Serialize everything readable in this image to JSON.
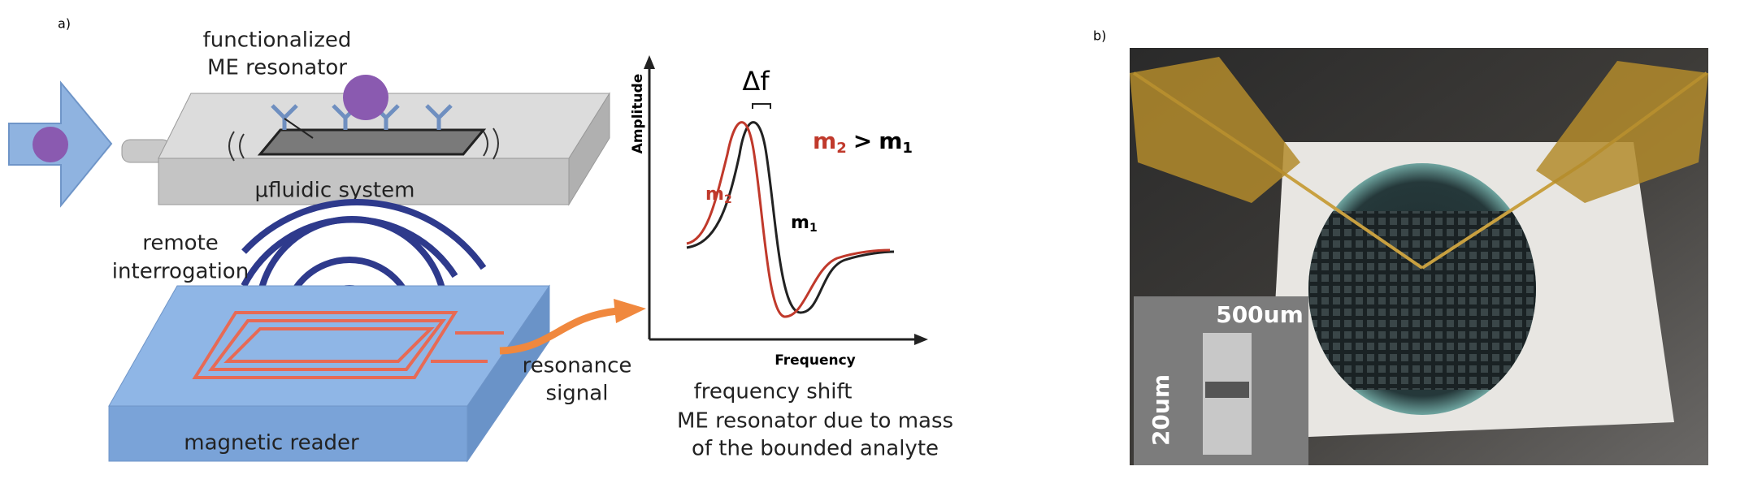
{
  "panel_a": {
    "label": "a)",
    "resonator_label": [
      "functionalized",
      "ME resonator"
    ],
    "fluidic_label": "µfluidic system",
    "interrogation_label": [
      "remote",
      "interrogation"
    ],
    "reader_label": "magnetic reader",
    "signal_label": [
      "resonance",
      "signal"
    ],
    "graph": {
      "y_axis": "Amplitude",
      "x_axis": "Frequency",
      "delta": "Δf",
      "m2": {
        "base": "m",
        "sub": "2"
      },
      "m1": {
        "base": "m",
        "sub": "1"
      },
      "relation": ">"
    },
    "caption": [
      "frequency shift",
      "ME resonator due to mass",
      "of the bounded analyte"
    ]
  },
  "panel_b": {
    "label": "b)",
    "inset_scale_1": "500um",
    "inset_scale_2": "20um"
  }
}
